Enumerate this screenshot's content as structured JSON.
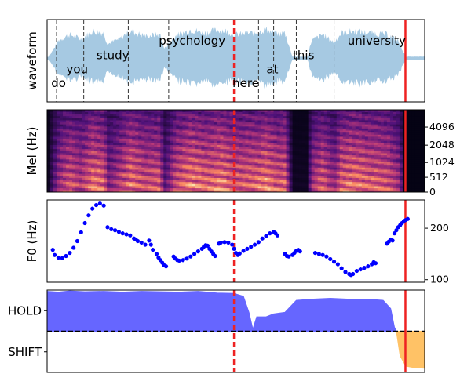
{
  "chart_data": [
    {
      "type": "area",
      "panel": "waveform",
      "ylabel": "waveform",
      "x_range": [
        0,
        10
      ],
      "grid": false,
      "color": "#a6c9e2",
      "envelope": [
        [
          0.05,
          0.05
        ],
        [
          0.3,
          0.55
        ],
        [
          0.6,
          0.75
        ],
        [
          0.9,
          0.6
        ],
        [
          1.2,
          0.85
        ],
        [
          1.5,
          0.8
        ],
        [
          1.6,
          0.45
        ],
        [
          1.9,
          0.6
        ],
        [
          2.2,
          0.85
        ],
        [
          2.6,
          0.7
        ],
        [
          3.0,
          0.75
        ],
        [
          3.1,
          0.3
        ],
        [
          3.4,
          0.7
        ],
        [
          3.8,
          0.9
        ],
        [
          4.2,
          0.8
        ],
        [
          4.6,
          0.9
        ],
        [
          5.0,
          0.75
        ],
        [
          5.5,
          0.8
        ],
        [
          5.8,
          0.9
        ],
        [
          6.1,
          0.75
        ],
        [
          6.3,
          0.8
        ],
        [
          6.5,
          0.05
        ],
        [
          6.9,
          0.05
        ],
        [
          7.0,
          0.55
        ],
        [
          7.3,
          0.75
        ],
        [
          7.6,
          0.5
        ],
        [
          7.8,
          0.8
        ],
        [
          8.1,
          0.85
        ],
        [
          8.5,
          0.8
        ],
        [
          9.0,
          0.75
        ],
        [
          9.3,
          0.55
        ],
        [
          9.5,
          0.05
        ],
        [
          10,
          0.05
        ]
      ],
      "words": [
        {
          "text": "do",
          "x": 0.15,
          "y": -0.62
        },
        {
          "text": "you",
          "x": 0.55,
          "y": -0.28
        },
        {
          "text": "study",
          "x": 1.35,
          "y": 0.08
        },
        {
          "text": "psychology",
          "x": 3.0,
          "y": 0.44
        },
        {
          "text": "here",
          "x": 4.95,
          "y": -0.62
        },
        {
          "text": "at",
          "x": 5.85,
          "y": -0.28
        },
        {
          "text": "this",
          "x": 6.55,
          "y": 0.08
        },
        {
          "text": "university",
          "x": 8.0,
          "y": 0.44
        }
      ],
      "word_boundaries": [
        0.25,
        0.97,
        2.15,
        3.22,
        4.95,
        5.6,
        6.0,
        6.6,
        7.6
      ],
      "dashed_marker_x": 4.95,
      "solid_marker_x": 9.49
    },
    {
      "type": "heatmap",
      "panel": "mel-spectrogram",
      "ylabel": "Mel (Hz)",
      "y_ticks": [
        "0",
        "512",
        "1024",
        "2048",
        "4096"
      ],
      "y_tick_positions": [
        0,
        0.18,
        0.36,
        0.57,
        0.79
      ],
      "x_range": [
        0,
        10
      ],
      "colormap": "magma",
      "silent_from_x": 9.45,
      "dashed_marker_x": 4.95,
      "solid_marker_x": 9.49
    },
    {
      "type": "scatter",
      "panel": "f0",
      "ylabel": "F0 (Hz)",
      "ylim": [
        95,
        255
      ],
      "y_ticks": [
        100,
        200
      ],
      "x_range": [
        0,
        10
      ],
      "color": "#0000ff",
      "segments": [
        [
          [
            0.15,
            158
          ],
          [
            0.2,
            148
          ],
          [
            0.3,
            143
          ],
          [
            0.4,
            142
          ],
          [
            0.5,
            146
          ],
          [
            0.6,
            152
          ],
          [
            0.7,
            162
          ],
          [
            0.8,
            175
          ],
          [
            0.9,
            192
          ],
          [
            1.0,
            210
          ],
          [
            1.1,
            225
          ],
          [
            1.2,
            238
          ],
          [
            1.3,
            245
          ],
          [
            1.4,
            248
          ],
          [
            1.5,
            244
          ]
        ],
        [
          [
            1.6,
            202
          ],
          [
            1.7,
            198
          ],
          [
            1.8,
            196
          ],
          [
            1.9,
            193
          ],
          [
            2.0,
            190
          ],
          [
            2.1,
            188
          ],
          [
            2.2,
            186
          ],
          [
            2.3,
            180
          ],
          [
            2.35,
            178
          ],
          [
            2.4,
            175
          ],
          [
            2.5,
            172
          ],
          [
            2.6,
            168
          ]
        ],
        [
          [
            2.7,
            176
          ],
          [
            2.75,
            168
          ],
          [
            2.8,
            158
          ],
          [
            2.9,
            150
          ],
          [
            2.95,
            143
          ],
          [
            3.0,
            138
          ],
          [
            3.05,
            133
          ],
          [
            3.1,
            128
          ],
          [
            3.15,
            126
          ]
        ],
        [
          [
            3.35,
            145
          ],
          [
            3.4,
            141
          ],
          [
            3.45,
            138
          ],
          [
            3.5,
            137
          ],
          [
            3.6,
            138
          ],
          [
            3.7,
            141
          ],
          [
            3.8,
            145
          ],
          [
            3.9,
            150
          ],
          [
            4.0,
            155
          ],
          [
            4.1,
            160
          ],
          [
            4.15,
            164
          ],
          [
            4.2,
            167
          ],
          [
            4.25,
            166
          ],
          [
            4.3,
            160
          ],
          [
            4.35,
            155
          ],
          [
            4.4,
            150
          ],
          [
            4.45,
            146
          ]
        ],
        [
          [
            4.55,
            170
          ],
          [
            4.6,
            172
          ],
          [
            4.7,
            173
          ],
          [
            4.8,
            172
          ],
          [
            4.9,
            168
          ],
          [
            4.95,
            160
          ],
          [
            5.0,
            152
          ],
          [
            5.05,
            148
          ],
          [
            5.1,
            151
          ],
          [
            5.2,
            156
          ],
          [
            5.3,
            160
          ],
          [
            5.4,
            164
          ],
          [
            5.5,
            168
          ],
          [
            5.6,
            173
          ],
          [
            5.7,
            180
          ],
          [
            5.8,
            185
          ],
          [
            5.9,
            190
          ],
          [
            6.0,
            193
          ],
          [
            6.05,
            190
          ],
          [
            6.1,
            186
          ]
        ],
        [
          [
            6.3,
            150
          ],
          [
            6.35,
            146
          ],
          [
            6.4,
            145
          ],
          [
            6.5,
            148
          ],
          [
            6.55,
            152
          ],
          [
            6.6,
            156
          ],
          [
            6.65,
            158
          ],
          [
            6.7,
            155
          ]
        ],
        [
          [
            7.1,
            152
          ],
          [
            7.2,
            150
          ],
          [
            7.3,
            148
          ],
          [
            7.4,
            145
          ],
          [
            7.5,
            140
          ],
          [
            7.6,
            135
          ],
          [
            7.7,
            130
          ],
          [
            7.8,
            122
          ],
          [
            7.9,
            115
          ],
          [
            8.0,
            111
          ],
          [
            8.05,
            109
          ],
          [
            8.1,
            111
          ],
          [
            8.2,
            117
          ],
          [
            8.3,
            120
          ],
          [
            8.4,
            123
          ],
          [
            8.5,
            126
          ],
          [
            8.6,
            130
          ],
          [
            8.65,
            134
          ],
          [
            8.7,
            132
          ]
        ],
        [
          [
            9.0,
            170
          ],
          [
            9.05,
            174
          ],
          [
            9.1,
            178
          ],
          [
            9.15,
            176
          ],
          [
            9.2,
            190
          ],
          [
            9.25,
            196
          ],
          [
            9.3,
            202
          ],
          [
            9.35,
            206
          ],
          [
            9.4,
            210
          ],
          [
            9.45,
            214
          ],
          [
            9.5,
            216
          ],
          [
            9.55,
            218
          ]
        ]
      ],
      "dashed_marker_x": 4.95,
      "solid_marker_x": 9.49
    },
    {
      "type": "area",
      "panel": "turn-taking",
      "y_ticks": [
        "HOLD",
        "SHIFT"
      ],
      "ylim": [
        -1,
        1
      ],
      "threshold_y": 0,
      "x_range": [
        0,
        10
      ],
      "series": [
        {
          "name": "HOLD",
          "color": "#6666ff",
          "points": [
            [
              0,
              0.97
            ],
            [
              0.3,
              0.95
            ],
            [
              0.6,
              0.98
            ],
            [
              1.0,
              0.96
            ],
            [
              1.5,
              0.97
            ],
            [
              2.0,
              0.95
            ],
            [
              2.5,
              0.97
            ],
            [
              3.0,
              0.96
            ],
            [
              3.5,
              0.95
            ],
            [
              4.0,
              0.97
            ],
            [
              4.5,
              0.93
            ],
            [
              4.95,
              0.92
            ],
            [
              5.2,
              0.85
            ],
            [
              5.35,
              0.45
            ],
            [
              5.45,
              0.05
            ],
            [
              5.55,
              0.35
            ],
            [
              5.8,
              0.35
            ],
            [
              6.0,
              0.42
            ],
            [
              6.3,
              0.46
            ],
            [
              6.6,
              0.75
            ],
            [
              7.0,
              0.78
            ],
            [
              7.5,
              0.8
            ],
            [
              8.0,
              0.78
            ],
            [
              8.5,
              0.78
            ],
            [
              8.9,
              0.75
            ],
            [
              9.1,
              0.55
            ],
            [
              9.2,
              0.1
            ],
            [
              9.25,
              0
            ]
          ]
        },
        {
          "name": "SHIFT",
          "color": "#ffc266",
          "points": [
            [
              9.25,
              0
            ],
            [
              9.35,
              -0.6
            ],
            [
              9.5,
              -0.85
            ],
            [
              9.7,
              -0.88
            ],
            [
              10.0,
              -0.9
            ]
          ]
        }
      ],
      "dashed_marker_x": 4.95,
      "solid_marker_x": 9.49
    }
  ]
}
